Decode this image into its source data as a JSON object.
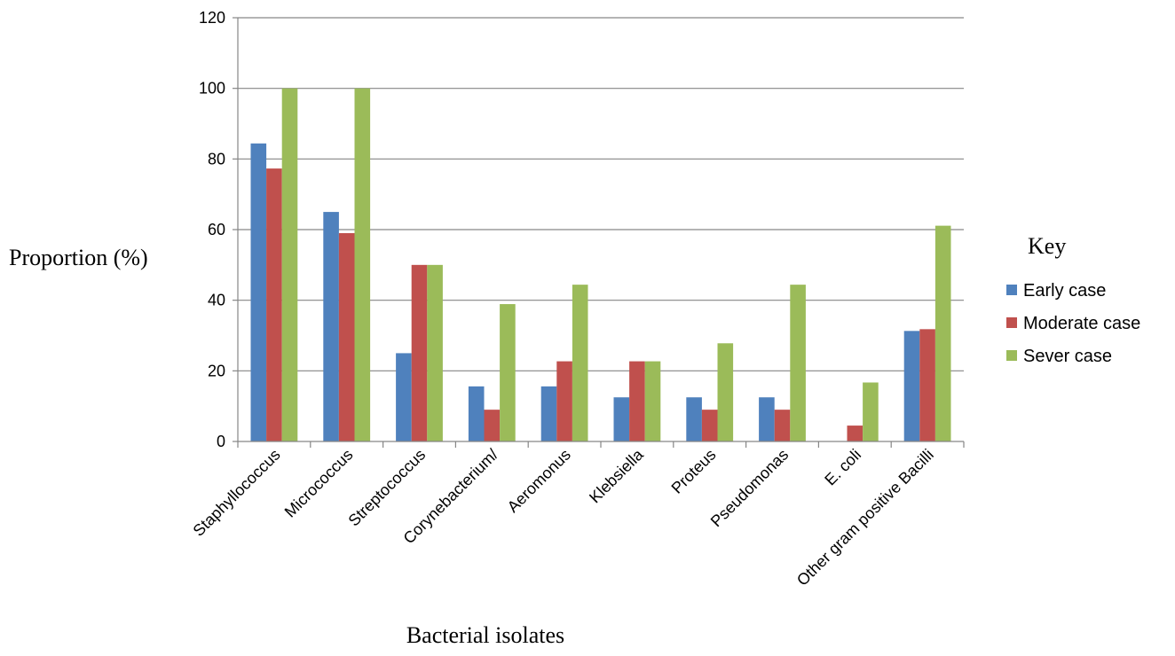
{
  "chart_data": {
    "type": "bar",
    "title": "",
    "xlabel": "Bacterial isolates",
    "ylabel": "Proportion (%)",
    "ylim": [
      0,
      120
    ],
    "yticks": [
      0,
      20,
      40,
      60,
      80,
      100,
      120
    ],
    "grid": true,
    "legend_title": "Key",
    "legend_position": "right",
    "categories": [
      "Staphyllococcus",
      "Micrococcus",
      "Streptococcus",
      "Corynebacterium/",
      "Aeromonus",
      "Klebsiella",
      "Proteus",
      "Pseudomonas",
      "E. coli",
      "Other gram positive Bacilli"
    ],
    "series": [
      {
        "name": "Early case",
        "color": "#4F81BD",
        "values": [
          84.4,
          65,
          25,
          15.6,
          15.6,
          12.5,
          12.5,
          12.5,
          0,
          31.3
        ]
      },
      {
        "name": "Moderate case",
        "color": "#C0504D",
        "values": [
          77.3,
          59,
          50,
          9,
          22.7,
          22.7,
          9,
          9,
          4.5,
          31.8
        ]
      },
      {
        "name": "Sever case",
        "color": "#9BBB59",
        "values": [
          100,
          100,
          50,
          38.9,
          44.4,
          22.7,
          27.8,
          44.4,
          16.7,
          61.1
        ]
      }
    ]
  }
}
